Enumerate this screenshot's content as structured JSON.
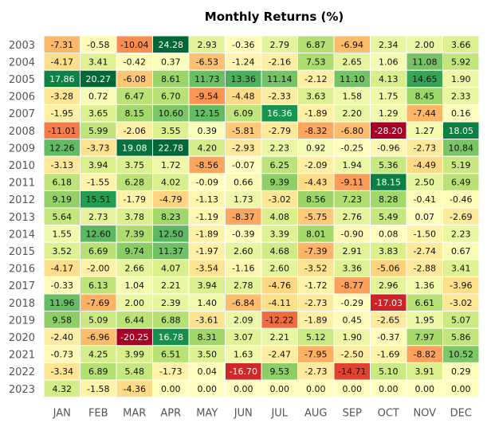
{
  "chart_data": {
    "type": "heatmap",
    "title": "Monthly Returns (%)",
    "xlabel": "",
    "ylabel": "",
    "colormap": "RdYlGn",
    "color_range": [
      -20,
      20
    ],
    "colors": {
      "cell_border": "#ffffff",
      "axis_text": "#555555",
      "title_text": "#000000"
    },
    "months": [
      "JAN",
      "FEB",
      "MAR",
      "APR",
      "MAY",
      "JUN",
      "JUL",
      "AUG",
      "SEP",
      "OCT",
      "NOV",
      "DEC"
    ],
    "years": [
      "2003",
      "2004",
      "2005",
      "2006",
      "2007",
      "2008",
      "2009",
      "2010",
      "2011",
      "2012",
      "2013",
      "2014",
      "2015",
      "2016",
      "2017",
      "2018",
      "2019",
      "2020",
      "2021",
      "2022",
      "2023"
    ],
    "values": [
      [
        "-7.31",
        "-0.58",
        "-10.04",
        "24.28",
        "2.93",
        "-0.36",
        "2.79",
        "6.87",
        "-6.94",
        "2.34",
        "2.00",
        "3.66"
      ],
      [
        "-4.17",
        "3.41",
        "-0.42",
        "0.37",
        "-6.53",
        "-1.24",
        "-2.16",
        "7.53",
        "2.65",
        "1.06",
        "11.08",
        "5.92"
      ],
      [
        "17.86",
        "20.27",
        "-6.08",
        "8.61",
        "11.73",
        "13.36",
        "11.14",
        "-2.12",
        "11.10",
        "4.13",
        "14.65",
        "1.90"
      ],
      [
        "-3.28",
        "0.72",
        "6.47",
        "6.70",
        "-9.54",
        "-4.48",
        "-2.33",
        "3.63",
        "1.58",
        "1.75",
        "8.45",
        "2.33"
      ],
      [
        "-1.95",
        "3.65",
        "8.15",
        "10.60",
        "12.15",
        "6.09",
        "16.36",
        "-1.89",
        "2.20",
        "1.29",
        "-7.44",
        "0.16"
      ],
      [
        "-11.01",
        "5.99",
        "-2.06",
        "3.55",
        "0.39",
        "-5.81",
        "-2.79",
        "-8.32",
        "-6.80",
        "-28.20",
        "1.27",
        "18.05"
      ],
      [
        "12.26",
        "-3.73",
        "19.08",
        "22.78",
        "4.20",
        "-2.93",
        "2.23",
        "0.92",
        "-0.25",
        "-0.96",
        "-2.73",
        "10.84"
      ],
      [
        "-3.13",
        "3.94",
        "3.75",
        "1.72",
        "-8.56",
        "-0.07",
        "6.25",
        "-2.09",
        "1.94",
        "5.36",
        "-4.49",
        "5.19"
      ],
      [
        "6.18",
        "-1.55",
        "6.28",
        "4.02",
        "-0.09",
        "0.66",
        "9.39",
        "-4.43",
        "-9.11",
        "18.15",
        "2.50",
        "6.49"
      ],
      [
        "9.19",
        "15.51",
        "-1.79",
        "-4.79",
        "-1.13",
        "1.73",
        "-3.02",
        "8.56",
        "7.23",
        "8.28",
        "-0.41",
        "-0.46"
      ],
      [
        "5.64",
        "2.73",
        "3.78",
        "8.23",
        "-1.19",
        "-8.37",
        "4.08",
        "-5.75",
        "2.76",
        "5.49",
        "0.07",
        "-2.69"
      ],
      [
        "1.55",
        "12.60",
        "7.39",
        "12.50",
        "-1.89",
        "-0.39",
        "3.39",
        "8.01",
        "-0.90",
        "0.08",
        "-1.50",
        "2.23"
      ],
      [
        "3.52",
        "6.69",
        "9.74",
        "11.37",
        "-1.97",
        "2.60",
        "4.68",
        "-7.39",
        "2.91",
        "3.83",
        "-2.74",
        "0.67"
      ],
      [
        "-4.17",
        "-2.00",
        "2.66",
        "4.07",
        "-3.54",
        "-1.16",
        "2.60",
        "-3.52",
        "3.36",
        "-5.06",
        "-2.88",
        "3.41"
      ],
      [
        "-0.33",
        "6.13",
        "1.04",
        "2.21",
        "3.94",
        "2.78",
        "-4.76",
        "-1.72",
        "-8.77",
        "2.96",
        "1.36",
        "-3.96"
      ],
      [
        "11.96",
        "-7.69",
        "2.00",
        "2.39",
        "1.40",
        "-6.84",
        "-4.11",
        "-2.73",
        "-0.29",
        "-17.03",
        "6.61",
        "-3.02"
      ],
      [
        "9.58",
        "5.09",
        "6.44",
        "6.88",
        "-3.61",
        "2.09",
        "-12.22",
        "-1.89",
        "0.45",
        "-2.65",
        "1.95",
        "5.07"
      ],
      [
        "-2.40",
        "-6.96",
        "-20.25",
        "16.78",
        "8.31",
        "3.07",
        "2.21",
        "5.12",
        "1.90",
        "-0.37",
        "7.97",
        "5.86"
      ],
      [
        "-0.73",
        "4.25",
        "3.99",
        "6.51",
        "3.50",
        "1.63",
        "-2.47",
        "-7.95",
        "-2.50",
        "-1.69",
        "-8.82",
        "10.52"
      ],
      [
        "-3.34",
        "6.89",
        "5.48",
        "-1.73",
        "0.04",
        "-16.70",
        "9.53",
        "-2.73",
        "-14.71",
        "5.10",
        "3.91",
        "0.29"
      ],
      [
        "4.32",
        "-1.58",
        "-4.36",
        "0.00",
        "0.00",
        "0.00",
        "0.00",
        "0.00",
        "0.00",
        "0.00",
        "0.00",
        "0.00"
      ]
    ]
  }
}
